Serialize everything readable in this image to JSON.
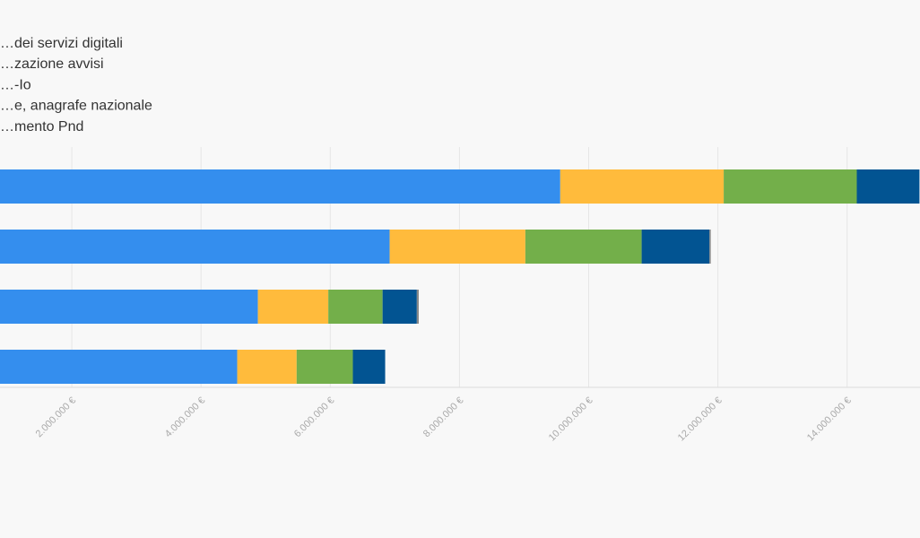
{
  "chart_data": {
    "type": "bar",
    "orientation": "horizontal",
    "stacked": true,
    "categories": [
      "",
      "",
      "",
      ""
    ],
    "series": [
      {
        "name": "…dei servizi digitali",
        "color": "#348EEE",
        "values": [
          9560000,
          6920000,
          4880000,
          4560000
        ]
      },
      {
        "name": "…zazione avvisi",
        "color": "#FFBB3C",
        "values": [
          2530000,
          2100000,
          1090000,
          920000
        ]
      },
      {
        "name": "…-Io",
        "color": "#73AF4A",
        "values": [
          2060000,
          1800000,
          840000,
          870000
        ]
      },
      {
        "name": "…e, anagrafe nazionale",
        "color": "#025492",
        "values": [
          970000,
          1050000,
          530000,
          500000
        ]
      },
      {
        "name": "…mento Pnd",
        "color": "#888888",
        "values": [
          0,
          20000,
          30000,
          0
        ]
      }
    ],
    "xlim": [
      0,
      15000000
    ],
    "x_ticks": [
      2000000,
      4000000,
      6000000,
      8000000,
      10000000,
      12000000,
      14000000
    ],
    "x_tick_labels": [
      "2.000.000 €",
      "4.000.000 €",
      "6.000.000 €",
      "8.000.000 €",
      "10.000.000 €",
      "12.000.000 €",
      "14.000.000 €"
    ],
    "grid": true,
    "legend_position": "top-left",
    "colors": {
      "background": "#f8f8f8",
      "grid": "#e6e6e6",
      "tick_text": "#aaaaaa",
      "legend_text": "#333333"
    }
  }
}
